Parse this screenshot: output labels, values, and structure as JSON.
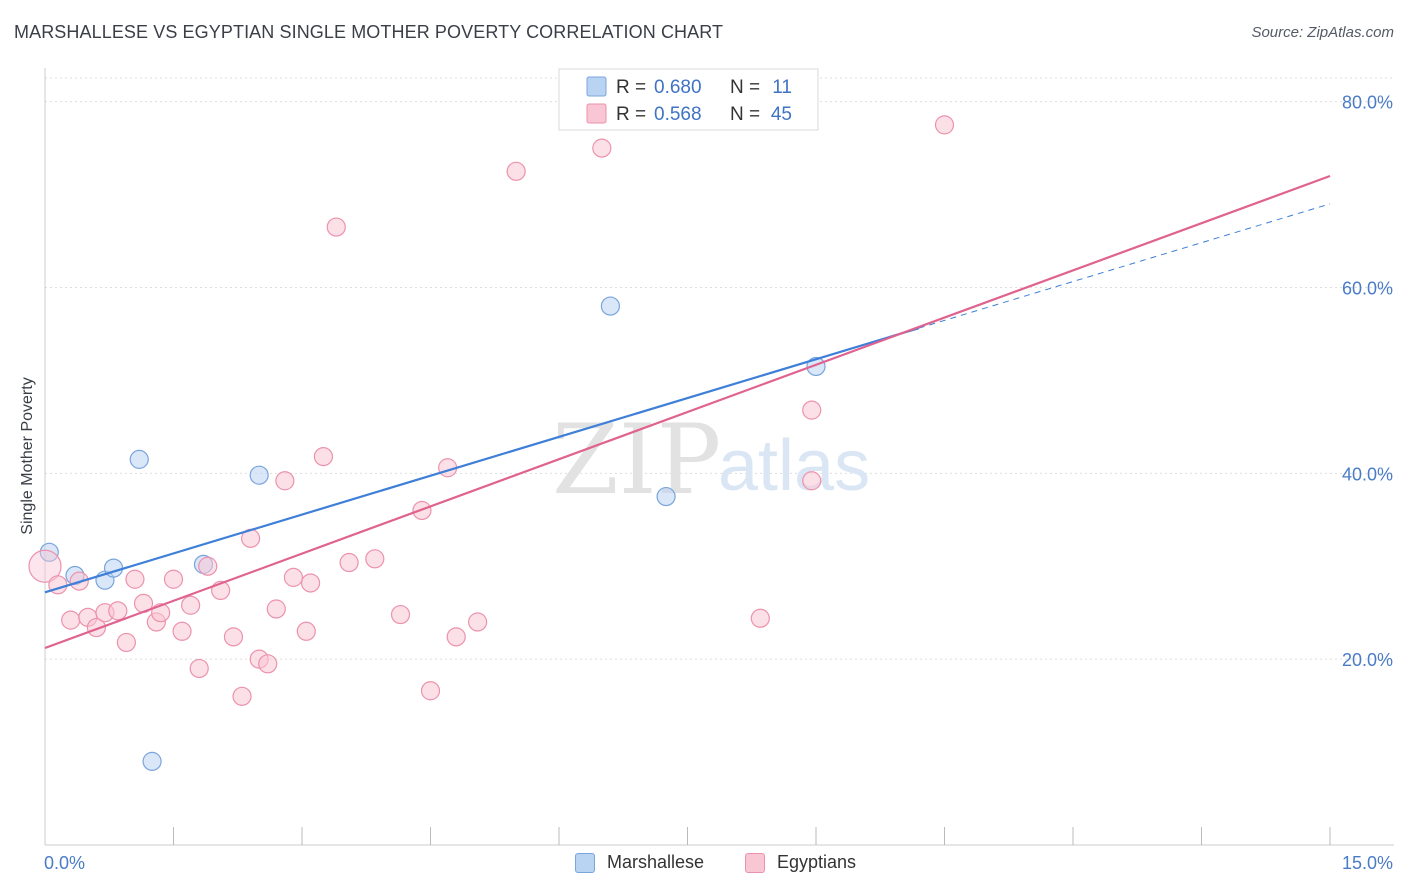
{
  "title": "MARSHALLESE VS EGYPTIAN SINGLE MOTHER POVERTY CORRELATION CHART",
  "source": "Source: ZipAtlas.com",
  "watermark": {
    "zip": "ZIP",
    "atlas": "atlas"
  },
  "legend_stats": [
    {
      "r_label": "R =",
      "r_value": "0.680",
      "n_label": "N =",
      "n_value": "11",
      "fill": "#b9d3f2",
      "stroke": "#7aa4dc"
    },
    {
      "r_label": "R =",
      "r_value": "0.568",
      "n_label": "N =",
      "n_value": "45",
      "fill": "#f9c6d4",
      "stroke": "#ec92ad"
    }
  ],
  "legend_bottom": [
    {
      "label": "Marshallese",
      "fill": "#b9d3f2",
      "stroke": "#7aa4dc"
    },
    {
      "label": "Egyptians",
      "fill": "#f9c6d4",
      "stroke": "#ec92ad"
    }
  ],
  "chart_data": {
    "type": "scatter",
    "title": "MARSHALLESE VS EGYPTIAN SINGLE MOTHER POVERTY CORRELATION CHART",
    "xlabel": "",
    "ylabel": "Single Mother Poverty",
    "xlim": [
      0,
      15
    ],
    "ylim": [
      0,
      82
    ],
    "x_tick_labels": [
      {
        "value": 0,
        "label": "0.0%"
      },
      {
        "value": 15,
        "label": "15.0%"
      }
    ],
    "y_tick_labels": [
      {
        "value": 20,
        "label": "20.0%"
      },
      {
        "value": 40,
        "label": "40.0%"
      },
      {
        "value": 60,
        "label": "60.0%"
      },
      {
        "value": 80,
        "label": "80.0%"
      }
    ],
    "x_minor_ticks": [
      1.5,
      3,
      4.5,
      6,
      7.5,
      9,
      10.5,
      12,
      13.5,
      15
    ],
    "grid": true,
    "series": [
      {
        "name": "Marshallese",
        "color": "#3f7fd8",
        "fill": "#b9d3f2",
        "stroke": "#7aa4dc",
        "points": [
          [
            0.05,
            31.5
          ],
          [
            0.35,
            29.0
          ],
          [
            0.7,
            28.5
          ],
          [
            0.8,
            29.8
          ],
          [
            1.1,
            41.5
          ],
          [
            1.25,
            9.0
          ],
          [
            1.85,
            30.2
          ],
          [
            2.5,
            39.8
          ],
          [
            6.6,
            58.0
          ],
          [
            7.25,
            37.5
          ],
          [
            9.0,
            51.5
          ]
        ],
        "trend": {
          "x0": 0,
          "y0": 27.2,
          "x1": 15,
          "y1": 69.0,
          "solid_until": 10.2
        }
      },
      {
        "name": "Egyptians",
        "color": "#e0628f",
        "fill": "#f9c6d4",
        "stroke": "#ec92ad",
        "points": [
          [
            0.0,
            30.0
          ],
          [
            0.15,
            28.0
          ],
          [
            0.3,
            24.2
          ],
          [
            0.4,
            28.4
          ],
          [
            0.5,
            24.5
          ],
          [
            0.6,
            23.4
          ],
          [
            0.7,
            25.0
          ],
          [
            0.85,
            25.2
          ],
          [
            0.95,
            21.8
          ],
          [
            1.05,
            28.6
          ],
          [
            1.15,
            26.0
          ],
          [
            1.3,
            24.0
          ],
          [
            1.35,
            25.0
          ],
          [
            1.5,
            28.6
          ],
          [
            1.6,
            23.0
          ],
          [
            1.7,
            25.8
          ],
          [
            1.8,
            19.0
          ],
          [
            1.9,
            30.0
          ],
          [
            2.05,
            27.4
          ],
          [
            2.2,
            22.4
          ],
          [
            2.3,
            16.0
          ],
          [
            2.4,
            33.0
          ],
          [
            2.5,
            20.0
          ],
          [
            2.6,
            19.5
          ],
          [
            2.7,
            25.4
          ],
          [
            2.8,
            39.2
          ],
          [
            2.9,
            28.8
          ],
          [
            3.05,
            23.0
          ],
          [
            3.1,
            28.2
          ],
          [
            3.25,
            41.8
          ],
          [
            3.4,
            66.5
          ],
          [
            3.55,
            30.4
          ],
          [
            3.85,
            30.8
          ],
          [
            4.15,
            24.8
          ],
          [
            4.4,
            36.0
          ],
          [
            4.5,
            16.6
          ],
          [
            4.7,
            40.6
          ],
          [
            4.8,
            22.4
          ],
          [
            5.05,
            24.0
          ],
          [
            5.5,
            72.5
          ],
          [
            6.5,
            75.0
          ],
          [
            8.35,
            24.4
          ],
          [
            8.95,
            46.8
          ],
          [
            8.95,
            39.2
          ],
          [
            10.5,
            77.5
          ]
        ],
        "trend": {
          "x0": 0,
          "y0": 21.2,
          "x1": 15,
          "y1": 72.0
        }
      }
    ]
  }
}
